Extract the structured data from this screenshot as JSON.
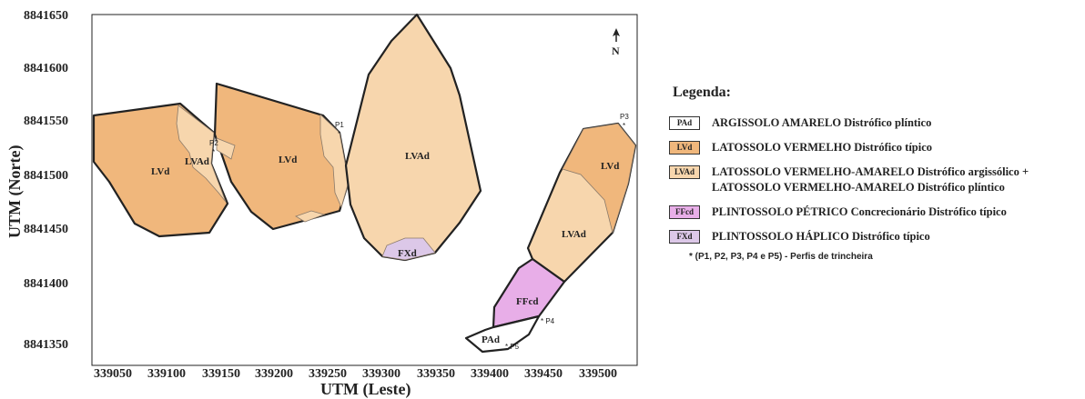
{
  "axes": {
    "x_title": "UTM (Leste)",
    "y_title": "UTM (Norte)",
    "x_ticks": [
      "339050",
      "339100",
      "339150",
      "339200",
      "339250",
      "339300",
      "339350",
      "339400",
      "339450",
      "339500"
    ],
    "y_ticks": [
      "8841650",
      "8841600",
      "8841550",
      "8841500",
      "8841450",
      "8841400",
      "8841350"
    ]
  },
  "north_arrow": {
    "icon": "north-arrow-icon",
    "label": "N"
  },
  "map_units": {
    "lvd_west": "LVd",
    "lvad_west": "LVAd",
    "lvd_center": "LVd",
    "lvad_main": "LVAd",
    "fxd": "FXd",
    "lvd_east": "LVd",
    "lvad_east": "LVAd",
    "ffcd": "FFcd",
    "pad": "PAd"
  },
  "profiles": {
    "p1": "P1",
    "p2": "P2",
    "p3": "P3",
    "p4": "* P4",
    "p5": "* P5"
  },
  "legend": {
    "title": "Legenda:",
    "items": [
      {
        "code": "PAd",
        "color": "#ffffff",
        "text": "ARGISSOLO AMARELO Distrófico plíntico"
      },
      {
        "code": "LVd",
        "color": "#f0b77c",
        "text": "LATOSSOLO VERMELHO Distrófico típico"
      },
      {
        "code": "LVAd",
        "color": "#f7d6ad",
        "text": "LATOSSOLO VERMELHO-AMARELO Distrófico argissólico + LATOSSOLO VERMELHO-AMARELO Distrófico plíntico"
      },
      {
        "code": "FFcd",
        "color": "#e8aee8",
        "text": "PLINTOSSOLO PÉTRICO Concrecionário Distrófico típico"
      },
      {
        "code": "FXd",
        "color": "#dcc8e8",
        "text": "PLINTOSSOLO HÁPLICO Distrófico típico"
      }
    ],
    "note": "* (P1, P2, P3, P4 e P5) - Perfis de trincheira"
  },
  "colors": {
    "lvd": "#f0b77c",
    "lvad": "#f7d6ad",
    "ffcd": "#e8aee8",
    "fxd": "#dcc8e8",
    "pad": "#ffffff",
    "outline": "#222222"
  }
}
